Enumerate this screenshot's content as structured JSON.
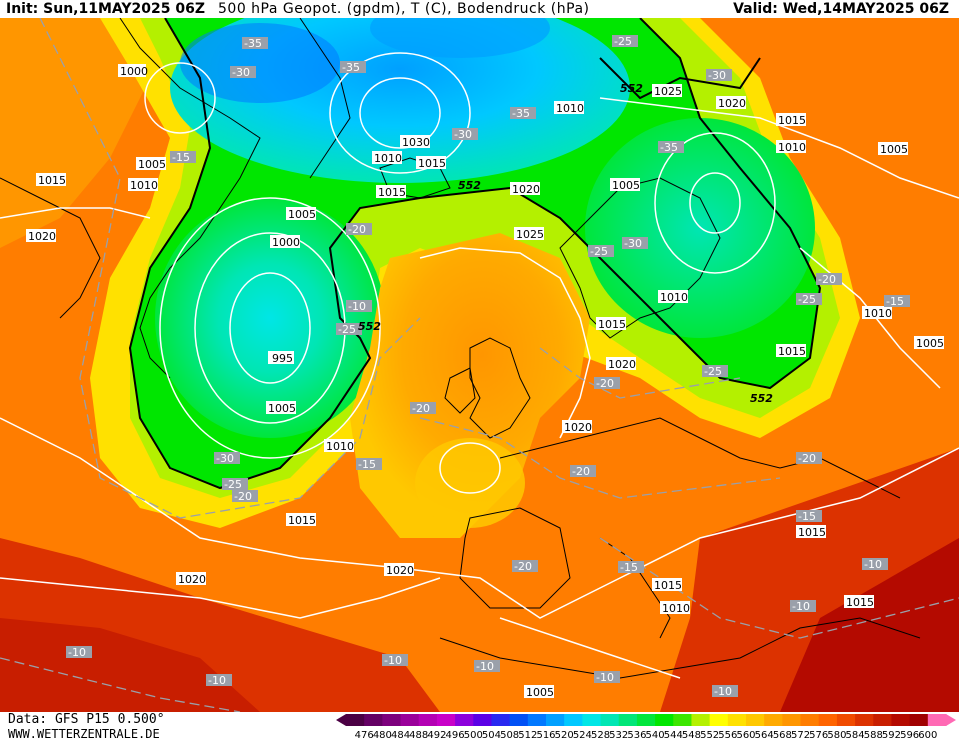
{
  "header": {
    "init": "Init: Sun,11MAY2025 06Z",
    "title": "500 hPa Geopot. (gpdm), T (C), Bodendruck (hPa)",
    "valid": "Valid: Wed,14MAY2025 06Z"
  },
  "footer": {
    "data_source": "Data: GFS P15 0.500°",
    "website": "WWW.WETTERZENTRALE.DE"
  },
  "legend": {
    "values": [
      "476",
      "480",
      "484",
      "488",
      "492",
      "496",
      "500",
      "504",
      "508",
      "512",
      "516",
      "520",
      "524",
      "528",
      "532",
      "536",
      "540",
      "544",
      "548",
      "552",
      "556",
      "560",
      "564",
      "568",
      "572",
      "576",
      "580",
      "584",
      "588",
      "592",
      "596",
      "600"
    ],
    "colors": [
      "#4b0044",
      "#640064",
      "#7d007d",
      "#9a009a",
      "#b400b4",
      "#c800c8",
      "#8c00dc",
      "#5a00e6",
      "#2828f0",
      "#0050f5",
      "#0078ff",
      "#00a0ff",
      "#00c8ff",
      "#00e6e6",
      "#00e6b4",
      "#00e678",
      "#00e63c",
      "#00e600",
      "#3ce600",
      "#b4f000",
      "#ffff00",
      "#ffe100",
      "#ffc800",
      "#ffaa00",
      "#ff9600",
      "#ff7d00",
      "#ff6400",
      "#f04b00",
      "#dc3200",
      "#c81e00",
      "#b40a00",
      "#a00000",
      "#ff69b4"
    ]
  },
  "map_labels": {
    "isobars": [
      "1000",
      "1005",
      "1010",
      "1015",
      "1020",
      "1025",
      "1030",
      "995"
    ],
    "isotherms": [
      "-35",
      "-30",
      "-25",
      "-20",
      "-15",
      "-10"
    ],
    "height_552": "552"
  }
}
